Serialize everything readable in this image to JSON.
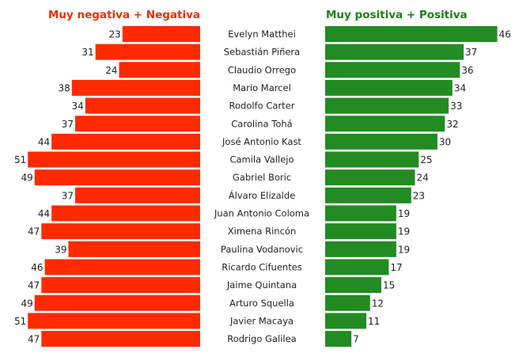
{
  "chart_data": {
    "type": "bar",
    "orientation": "horizontal-diverging",
    "categories": [
      "Evelyn Matthei",
      "Sebastián Piñera",
      "Claudio Orrego",
      "Mario Marcel",
      "Rodolfo Carter",
      "Carolina Tohá",
      "José Antonio Kast",
      "Camila Vallejo",
      "Gabriel Boric",
      "Álvaro Elizalde",
      "Juan Antonio Coloma",
      "Ximena Rincón",
      "Paulina Vodanovic",
      "Ricardo Cifuentes",
      "Jaime Quintana",
      "Arturo Squella",
      "Javier Macaya",
      "Rodrigo Galilea"
    ],
    "series": [
      {
        "name": "Muy negativa + Negativa",
        "color": "#FF2A00",
        "title_color": "#E8300A",
        "values": [
          23,
          31,
          24,
          38,
          34,
          37,
          44,
          51,
          49,
          37,
          44,
          47,
          39,
          46,
          47,
          49,
          51,
          47
        ]
      },
      {
        "name": "Muy positiva + Positiva",
        "color": "#228B22",
        "title_color": "#1E7E1E",
        "values": [
          46,
          37,
          36,
          34,
          33,
          32,
          30,
          25,
          24,
          23,
          19,
          19,
          19,
          17,
          15,
          12,
          11,
          7
        ]
      }
    ],
    "data_labels": true,
    "grid": false
  }
}
